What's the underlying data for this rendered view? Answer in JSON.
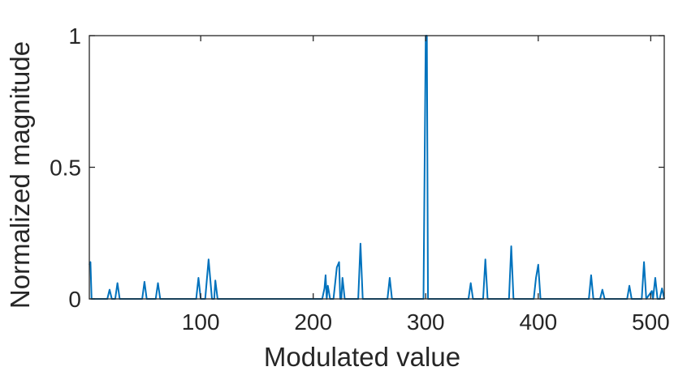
{
  "chart_data": {
    "type": "line",
    "title": "",
    "xlabel": "Modulated value",
    "ylabel": "Normalized magnitude",
    "xlim": [
      1,
      512
    ],
    "ylim": [
      0,
      1
    ],
    "xticks": [
      100,
      200,
      300,
      400,
      500
    ],
    "yticks": [
      0,
      0.5,
      1
    ],
    "xtick_labels": [
      "100",
      "200",
      "300",
      "400",
      "500"
    ],
    "ytick_labels": [
      "0",
      "0.5",
      "1"
    ],
    "grid": false,
    "series": [
      {
        "color": "#0072BD",
        "x": [
          1,
          2,
          3,
          5,
          17,
          19,
          21,
          24,
          26,
          28,
          48,
          50,
          52,
          60,
          62,
          64,
          96,
          98,
          100,
          104,
          107,
          110,
          112,
          113,
          115,
          117,
          208,
          210,
          211,
          212,
          213,
          215,
          218,
          221,
          223,
          224,
          225,
          226,
          228,
          240,
          242,
          244,
          266,
          268,
          270,
          298,
          300,
          301,
          302,
          304,
          338,
          340,
          342,
          351,
          353,
          355,
          374,
          376,
          378,
          396,
          398,
          400,
          402,
          403,
          445,
          447,
          449,
          455,
          457,
          459,
          479,
          481,
          483,
          492,
          494,
          496,
          501,
          502,
          504,
          506,
          508,
          510,
          512
        ],
        "y": [
          0.13,
          0.14,
          0.0,
          0.0,
          0.0,
          0.035,
          0.0,
          0.0,
          0.06,
          0.0,
          0.0,
          0.065,
          0.0,
          0.0,
          0.06,
          0.0,
          0.0,
          0.08,
          0.0,
          0.0,
          0.15,
          0.0,
          0.0,
          0.07,
          0.0,
          0.0,
          0.0,
          0.04,
          0.09,
          0.0,
          0.05,
          0.0,
          0.0,
          0.12,
          0.14,
          0.0,
          0.0,
          0.08,
          0.0,
          0.0,
          0.21,
          0.0,
          0.0,
          0.08,
          0.0,
          0.0,
          1.0,
          1.0,
          0.0,
          0.0,
          0.0,
          0.06,
          0.0,
          0.0,
          0.15,
          0.0,
          0.0,
          0.2,
          0.0,
          0.0,
          0.08,
          0.13,
          0.0,
          0.0,
          0.0,
          0.09,
          0.0,
          0.0,
          0.035,
          0.0,
          0.0,
          0.05,
          0.0,
          0.0,
          0.14,
          0.0,
          0.03,
          0.0,
          0.08,
          0.0,
          0.0,
          0.04,
          0.0
        ]
      }
    ]
  }
}
